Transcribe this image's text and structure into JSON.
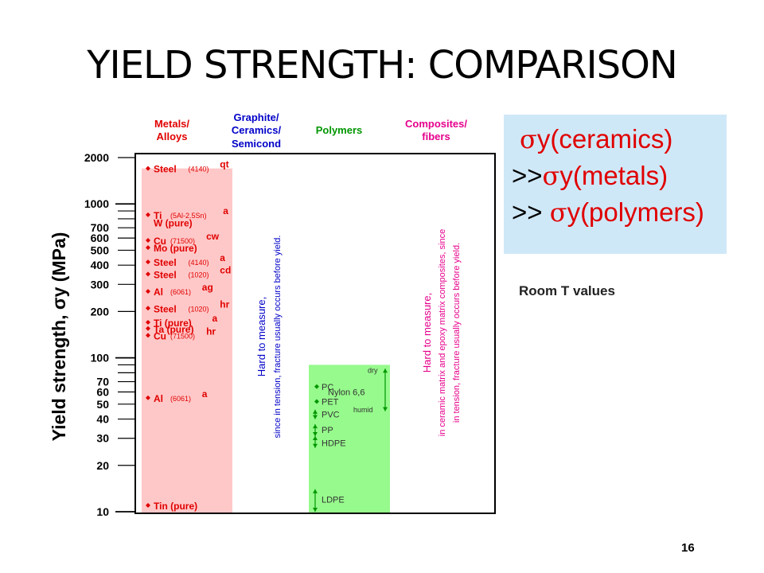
{
  "slide": {
    "title": "YIELD STRENGTH: COMPARISON",
    "page_number": "16"
  },
  "callout": {
    "line1_sigma": "σ",
    "line1_term": "y(ceramics)",
    "line2_prefix": ">>",
    "line2_sigma": "σ",
    "line2_term": "y(metals)",
    "line3_prefix": ">>",
    "line3_sigma": "σ",
    "line3_term": "y(polymers)"
  },
  "note": "Room T values",
  "colors": {
    "metals": "#ffc8c8",
    "polymers": "#96fa8c",
    "metal_text": "#e00000",
    "ceramic_text": "#0000c8",
    "polymer_text": "#009600",
    "composite_text": "#e6008c",
    "callout_bg": "#cfe8f8"
  },
  "chart_data": {
    "type": "bar",
    "ylabel": "Yield strength, σy (MPa)",
    "yscale": "log",
    "ylim": [
      10,
      2000
    ],
    "yticks": [
      {
        "label": "2000",
        "value": 2000
      },
      {
        "label": "1000",
        "value": 1000
      },
      {
        "label": "700",
        "value": 700
      },
      {
        "label": "600",
        "value": 600
      },
      {
        "label": "500",
        "value": 500
      },
      {
        "label": "400",
        "value": 400
      },
      {
        "label": "300",
        "value": 300
      },
      {
        "label": "200",
        "value": 200
      },
      {
        "label": "100",
        "value": 100
      },
      {
        "label": "70",
        "value": 70
      },
      {
        "label": "60",
        "value": 60
      },
      {
        "label": "50",
        "value": 50
      },
      {
        "label": "40",
        "value": 40
      },
      {
        "label": "30",
        "value": 30
      },
      {
        "label": "20",
        "value": 20
      },
      {
        "label": "10",
        "value": 10
      }
    ],
    "categories": [
      {
        "key": "metals",
        "label": [
          "Metals/",
          "Alloys"
        ]
      },
      {
        "key": "ceramics",
        "label": [
          "Graphite/",
          "Ceramics/",
          "Semicond"
        ]
      },
      {
        "key": "polymers",
        "label": [
          "Polymers"
        ]
      },
      {
        "key": "composites",
        "label": [
          "Composites/",
          "fibers"
        ]
      }
    ],
    "category_ranges": {
      "metals": [
        10,
        1700
      ],
      "polymers": [
        10,
        90
      ]
    },
    "metals": [
      {
        "name": "Steel",
        "spec": "(4140)",
        "cond": "qt",
        "value": 1700,
        "marker": "diamond"
      },
      {
        "name": "Ti",
        "spec": "(5Al-2.5Sn)",
        "cond": "a",
        "value": 850,
        "marker": "diamond"
      },
      {
        "name": "W (pure)",
        "spec": "",
        "cond": "",
        "value": 760,
        "marker": "none"
      },
      {
        "name": "Cu",
        "spec": "(71500)",
        "cond": "cw",
        "value": 580,
        "marker": "diamond"
      },
      {
        "name": "Mo (pure)",
        "spec": "",
        "cond": "",
        "value": 520,
        "marker": "diamond"
      },
      {
        "name": "Steel",
        "spec": "(4140)",
        "cond": "a",
        "value": 420,
        "marker": "diamond"
      },
      {
        "name": "Steel",
        "spec": "(1020)",
        "cond": "cd",
        "value": 350,
        "marker": "diamond"
      },
      {
        "name": "Al",
        "spec": "(6061)",
        "cond": "ag",
        "value": 270,
        "marker": "diamond"
      },
      {
        "name": "Steel",
        "spec": "(1020)",
        "cond": "hr",
        "value": 210,
        "marker": "diamond"
      },
      {
        "name": "Ti (pure)",
        "spec": "",
        "cond": "a",
        "value": 170,
        "marker": "diamond"
      },
      {
        "name": "Ta (pure)",
        "spec": "",
        "cond": "",
        "value": 155,
        "marker": "diamond"
      },
      {
        "name": "Cu",
        "spec": "(71500)",
        "cond": "hr",
        "value": 140,
        "marker": "diamond"
      },
      {
        "name": "Al",
        "spec": "(6061)",
        "cond": "a",
        "value": 55,
        "marker": "diamond"
      },
      {
        "name": "Tin (pure)",
        "spec": "",
        "cond": "",
        "value": 11,
        "marker": "diamond"
      }
    ],
    "polymers": [
      {
        "name": "PC",
        "value": 65,
        "range": [
          60,
          70
        ]
      },
      {
        "name": "Nylon 6,6",
        "value": 60,
        "range": [
          45,
          85
        ]
      },
      {
        "name": "PET",
        "value": 52,
        "range": [
          48,
          56
        ]
      },
      {
        "name": "PVC",
        "value": 43,
        "range": [
          40,
          46
        ]
      },
      {
        "name": "PP",
        "value": 34,
        "range": [
          31,
          37
        ]
      },
      {
        "name": "HDPE",
        "value": 28,
        "range": [
          26,
          31
        ]
      },
      {
        "name": "LDPE",
        "value": 12,
        "range": [
          10,
          14
        ]
      }
    ],
    "nylon_labels": {
      "top": "dry",
      "bottom": "humid"
    },
    "annotations": {
      "ceramics": [
        "Hard to measure,",
        "since in tension, fracture usually occurs before yield."
      ],
      "composites": [
        "Hard to measure,",
        "in ceramic matrix and epoxy matrix composites, since",
        "in tension, fracture usually occurs before yield."
      ]
    }
  }
}
